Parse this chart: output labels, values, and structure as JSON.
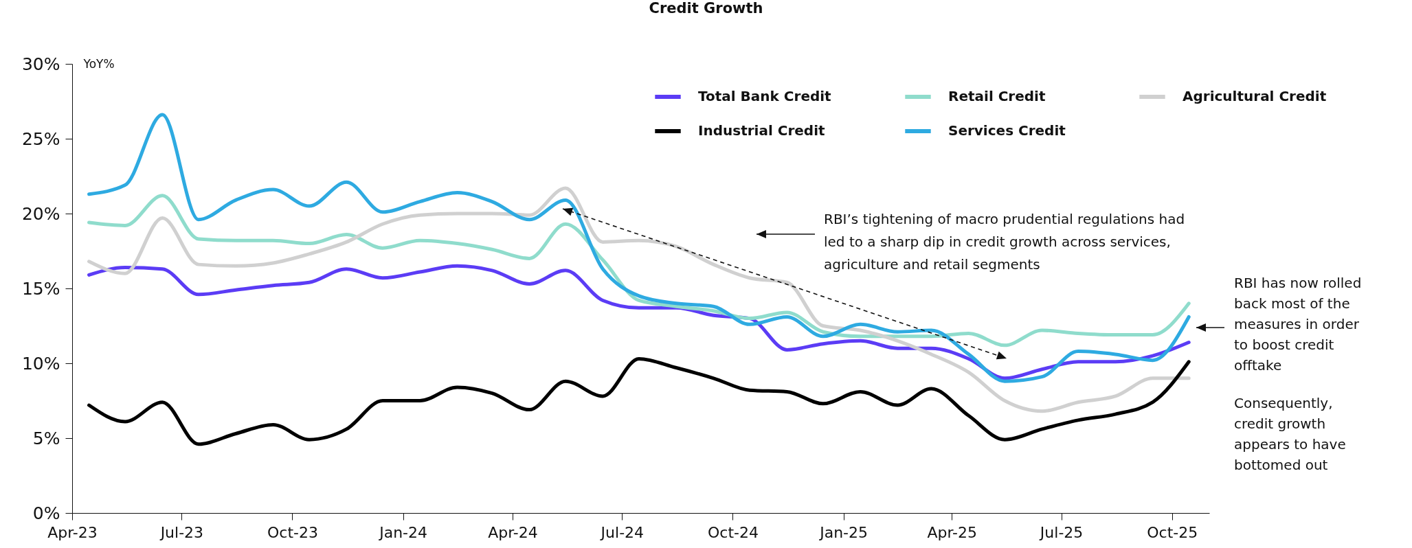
{
  "chart_data": {
    "type": "line",
    "title": "Credit Growth",
    "ylabel": "YoY%",
    "x": [
      "2023-04-15",
      "2023-05-15",
      "2023-06-15",
      "2023-07-15",
      "2023-08-15",
      "2023-09-15",
      "2023-10-15",
      "2023-11-15",
      "2023-12-15",
      "2024-01-15",
      "2024-02-15",
      "2024-03-15",
      "2024-04-15",
      "2024-05-15",
      "2024-06-15",
      "2024-07-15",
      "2024-08-15",
      "2024-09-15",
      "2024-10-15",
      "2024-11-15",
      "2024-12-15",
      "2025-01-15",
      "2025-02-15",
      "2025-03-15",
      "2025-04-15",
      "2025-05-15",
      "2025-06-15",
      "2025-07-15",
      "2025-08-15",
      "2025-09-15",
      "2025-10-15"
    ],
    "series": [
      {
        "name": "Total Bank Credit",
        "color": "#5b3cf5",
        "values": [
          15.9,
          16.4,
          16.3,
          14.6,
          14.9,
          15.2,
          15.4,
          16.3,
          15.7,
          16.1,
          16.5,
          16.2,
          15.3,
          16.2,
          14.2,
          13.7,
          13.7,
          13.2,
          13.0,
          10.9,
          11.3,
          11.5,
          11.0,
          11.0,
          10.3,
          9.0,
          9.6,
          10.1,
          10.1,
          10.5,
          11.4
        ]
      },
      {
        "name": "Retail  Credit",
        "color": "#8fdccc",
        "values": [
          19.4,
          19.2,
          21.2,
          18.3,
          18.2,
          18.2,
          18.0,
          18.6,
          17.7,
          18.2,
          18.0,
          17.6,
          17.0,
          19.3,
          16.9,
          14.2,
          13.8,
          13.5,
          13.0,
          13.4,
          12.1,
          11.8,
          11.8,
          11.8,
          12.0,
          11.2,
          12.2,
          12.0,
          11.9,
          11.9,
          14.0
        ]
      },
      {
        "name": "Agricultural Credit",
        "color": "#d0d0d0",
        "values": [
          16.8,
          16.0,
          19.7,
          16.6,
          16.5,
          16.7,
          17.3,
          18.1,
          19.3,
          19.9,
          20.0,
          20.0,
          19.9,
          21.7,
          18.1,
          18.2,
          17.8,
          16.6,
          15.7,
          15.4,
          12.5,
          12.2,
          11.5,
          10.6,
          9.4,
          7.5,
          6.8,
          7.4,
          7.8,
          9.0,
          9.0
        ]
      },
      {
        "name": "Industrial Credit",
        "color": "#000000",
        "values": [
          7.2,
          6.1,
          7.4,
          4.6,
          5.3,
          5.9,
          4.9,
          5.6,
          7.5,
          7.5,
          8.4,
          8.0,
          6.9,
          8.8,
          7.8,
          10.3,
          9.7,
          9.0,
          8.2,
          8.1,
          7.3,
          8.1,
          7.2,
          8.3,
          6.5,
          4.9,
          5.6,
          6.2,
          6.6,
          7.4,
          10.1
        ]
      },
      {
        "name": "Services Credit",
        "color": "#2eaae1",
        "values": [
          21.3,
          21.9,
          26.6,
          19.6,
          20.9,
          21.6,
          20.5,
          22.1,
          20.1,
          20.8,
          21.4,
          20.8,
          19.6,
          20.9,
          16.3,
          14.5,
          14.0,
          13.8,
          12.6,
          13.1,
          11.8,
          12.6,
          12.1,
          12.2,
          10.6,
          8.8,
          9.1,
          10.8,
          10.6,
          10.2,
          13.1
        ]
      }
    ],
    "xlim": [
      "2023-04-01",
      "2025-11-01"
    ],
    "xticks": [
      {
        "value": "2023-04-01",
        "label": "Apr-23"
      },
      {
        "value": "2023-07-01",
        "label": "Jul-23"
      },
      {
        "value": "2023-10-01",
        "label": "Oct-23"
      },
      {
        "value": "2024-01-01",
        "label": "Jan-24"
      },
      {
        "value": "2024-04-01",
        "label": "Apr-24"
      },
      {
        "value": "2024-07-01",
        "label": "Jul-24"
      },
      {
        "value": "2024-10-01",
        "label": "Oct-24"
      },
      {
        "value": "2025-01-01",
        "label": "Jan-25"
      },
      {
        "value": "2025-04-01",
        "label": "Apr-25"
      },
      {
        "value": "2025-07-01",
        "label": "Jul-25"
      },
      {
        "value": "2025-10-01",
        "label": "Oct-25"
      }
    ],
    "ylim": [
      0,
      30
    ],
    "yticks": [
      {
        "value": 0,
        "label": "0%"
      },
      {
        "value": 5,
        "label": "5%"
      },
      {
        "value": 10,
        "label": "10%"
      },
      {
        "value": 15,
        "label": "15%"
      },
      {
        "value": 20,
        "label": "20%"
      },
      {
        "value": 25,
        "label": "25%"
      },
      {
        "value": 30,
        "label": "30%"
      }
    ],
    "annotations": [
      "RBI’s tightening of macro prudential regulations had led to a sharp dip in credit growth across services, agriculture and retail segments",
      "RBI has now rolled back most of the measures in order to boost credit offtake",
      "Consequently, credit growth appears to have bottomed out"
    ],
    "legend": "top right",
    "grid": false,
    "marker": "none",
    "line_style": "solid"
  }
}
